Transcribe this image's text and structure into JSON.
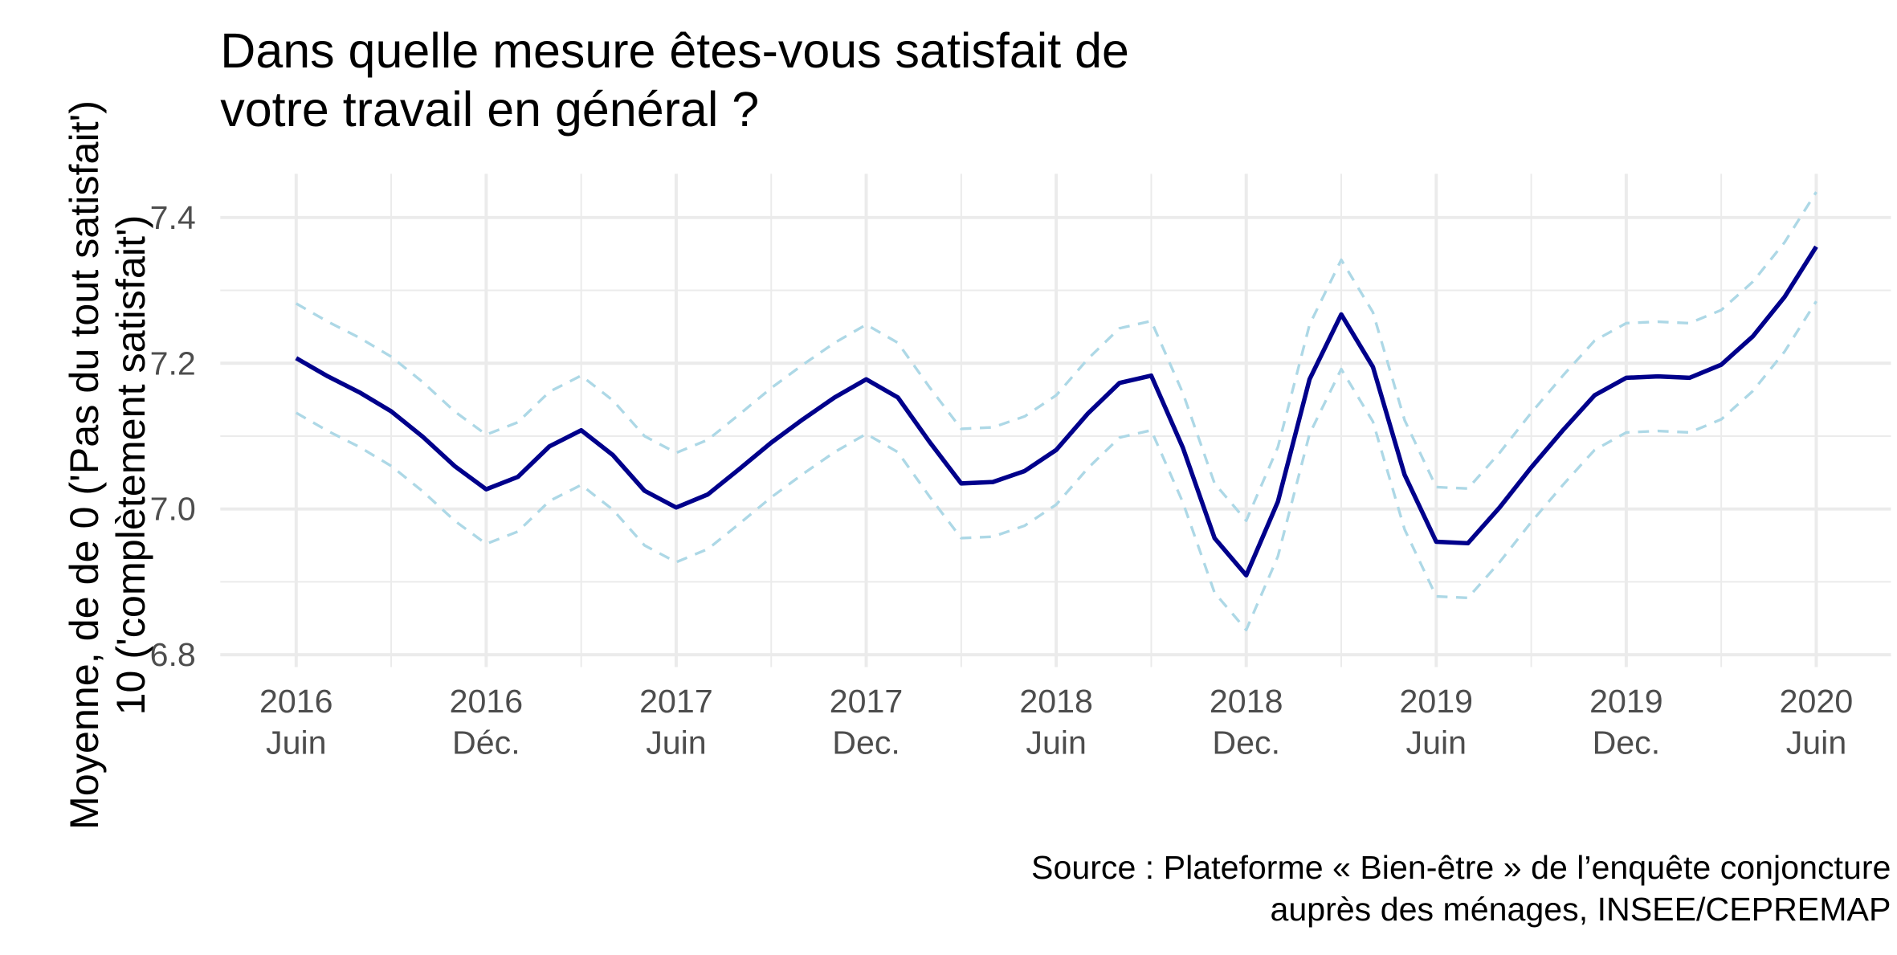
{
  "chart_data": {
    "type": "line",
    "title": "Dans quelle mesure êtes-vous satisfait de\nvotre travail en général ?",
    "y_axis_label": "Moyenne, de de 0 ('Pas du tout satisfait')\n10 ('complètement satisfait')",
    "source": "Source : Plateforme « Bien-être » de l’enquête conjoncture\nauprès des ménages, INSEE/CEPREMAP",
    "categories": [
      "2016\nJuin",
      null,
      null,
      null,
      null,
      null,
      "2016\nDéc.",
      null,
      null,
      null,
      null,
      null,
      "2017\nJuin",
      null,
      null,
      null,
      null,
      null,
      "2017\nDec.",
      null,
      null,
      null,
      null,
      null,
      "2018\nJuin",
      null,
      null,
      null,
      null,
      null,
      "2018\nDec.",
      null,
      null,
      null,
      null,
      null,
      "2019\nJuin",
      null,
      null,
      null,
      null,
      null,
      "2019\nDec.",
      null,
      null,
      null,
      null,
      null,
      "2020\nJuin"
    ],
    "series": [
      {
        "color": "#add8e6",
        "dashed": true,
        "values": [
          7.282,
          7.257,
          7.235,
          7.209,
          7.174,
          7.134,
          7.102,
          7.119,
          7.161,
          7.183,
          7.149,
          7.1,
          7.077,
          7.095,
          7.13,
          7.166,
          7.198,
          7.228,
          7.253,
          7.228,
          7.167,
          7.11,
          7.112,
          7.127,
          7.156,
          7.206,
          7.248,
          7.258,
          7.159,
          7.035,
          6.984,
          7.085,
          7.253,
          7.342,
          7.27,
          7.122,
          7.03,
          7.028,
          7.077,
          7.132,
          7.183,
          7.231,
          7.255,
          7.257,
          7.255,
          7.273,
          7.312,
          7.366,
          7.435
        ]
      },
      {
        "color": "#add8e6",
        "dashed": true,
        "values": [
          7.132,
          7.107,
          7.085,
          7.059,
          7.024,
          6.984,
          6.952,
          6.969,
          7.011,
          7.033,
          6.999,
          6.95,
          6.927,
          6.945,
          6.98,
          7.016,
          7.048,
          7.078,
          7.103,
          7.078,
          7.017,
          6.96,
          6.962,
          6.977,
          7.006,
          7.056,
          7.098,
          7.108,
          7.009,
          6.885,
          6.834,
          6.935,
          7.103,
          7.192,
          7.12,
          6.972,
          6.88,
          6.878,
          6.927,
          6.982,
          7.033,
          7.081,
          7.105,
          7.107,
          7.105,
          7.123,
          7.162,
          7.216,
          7.285
        ]
      },
      {
        "color": "#00008b",
        "dashed": false,
        "values": [
          7.207,
          7.182,
          7.16,
          7.134,
          7.099,
          7.059,
          7.027,
          7.044,
          7.086,
          7.108,
          7.074,
          7.025,
          7.002,
          7.02,
          7.055,
          7.091,
          7.123,
          7.153,
          7.178,
          7.153,
          7.092,
          7.035,
          7.037,
          7.052,
          7.081,
          7.131,
          7.173,
          7.183,
          7.084,
          6.96,
          6.909,
          7.01,
          7.178,
          7.267,
          7.195,
          7.047,
          6.955,
          6.953,
          7.002,
          7.057,
          7.108,
          7.156,
          7.18,
          7.182,
          7.18,
          7.198,
          7.237,
          7.291,
          7.36
        ]
      }
    ],
    "ylim": [
      6.783,
      7.46
    ],
    "yticks": [
      6.8,
      {
        "value": 7,
        "label": "7.0"
      },
      7.2,
      7.4
    ],
    "y_minor_ticks": [
      6.9,
      7.1,
      7.3
    ],
    "grid": true
  }
}
